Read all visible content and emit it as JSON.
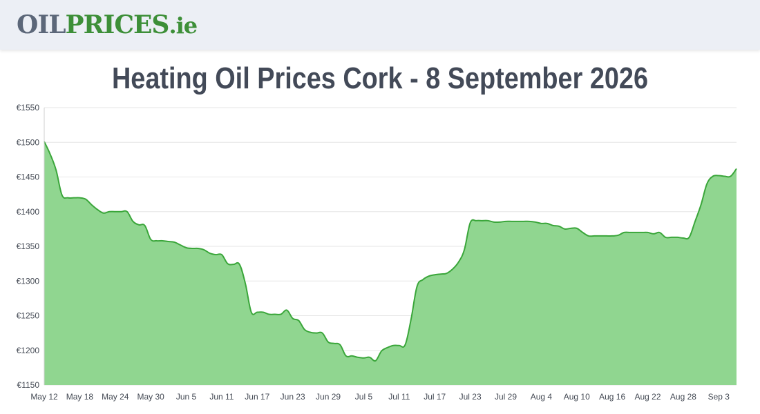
{
  "header": {
    "logo_part1": "OIL",
    "logo_part2": "PRICES",
    "logo_part3": ".ie"
  },
  "colors": {
    "line": "#3aa63a",
    "area": "#90d690",
    "grid": "#e6e6e6",
    "logo_gray": "#5c6779",
    "logo_green": "#3d8f38",
    "title": "#434a58"
  },
  "chart_data": {
    "type": "area",
    "title": "Heating Oil Prices Cork - 8 September 2026",
    "xlabel": "",
    "ylabel": "",
    "y_prefix": "€",
    "ylim": [
      1150,
      1550
    ],
    "y_ticks": [
      1150,
      1200,
      1250,
      1300,
      1350,
      1400,
      1450,
      1500,
      1550
    ],
    "x_tick_labels": [
      "May 12",
      "May 18",
      "May 24",
      "May 30",
      "Jun 5",
      "Jun 11",
      "Jun 17",
      "Jun 23",
      "Jun 29",
      "Jul 5",
      "Jul 11",
      "Jul 17",
      "Jul 23",
      "Jul 29",
      "Aug 4",
      "Aug 10",
      "Aug 16",
      "Aug 22",
      "Aug 28",
      "Sep 3"
    ],
    "grid": true,
    "legend": "none",
    "series": [
      {
        "values": [
          1501,
          1483,
          1460,
          1424,
          1420,
          1420,
          1420,
          1418,
          1410,
          1403,
          1398,
          1400,
          1400,
          1400,
          1400,
          1386,
          1381,
          1380,
          1360,
          1358,
          1358,
          1357,
          1356,
          1352,
          1348,
          1347,
          1347,
          1345,
          1340,
          1338,
          1338,
          1325,
          1324,
          1324,
          1296,
          1255,
          1255,
          1255,
          1252,
          1252,
          1252,
          1258,
          1246,
          1243,
          1230,
          1226,
          1225,
          1225,
          1212,
          1210,
          1208,
          1192,
          1192,
          1190,
          1189,
          1190,
          1185,
          1199,
          1204,
          1207,
          1207,
          1208,
          1245,
          1292,
          1302,
          1307,
          1309,
          1310,
          1311,
          1317,
          1327,
          1345,
          1384,
          1387,
          1387,
          1387,
          1385,
          1385,
          1386,
          1386,
          1386,
          1386,
          1386,
          1385,
          1383,
          1383,
          1380,
          1379,
          1375,
          1376,
          1376,
          1370,
          1365,
          1365,
          1365,
          1365,
          1365,
          1366,
          1370,
          1370,
          1370,
          1370,
          1370,
          1368,
          1370,
          1363,
          1363,
          1363,
          1362,
          1363,
          1386,
          1410,
          1440,
          1451,
          1452,
          1451,
          1451,
          1462
        ]
      }
    ]
  }
}
